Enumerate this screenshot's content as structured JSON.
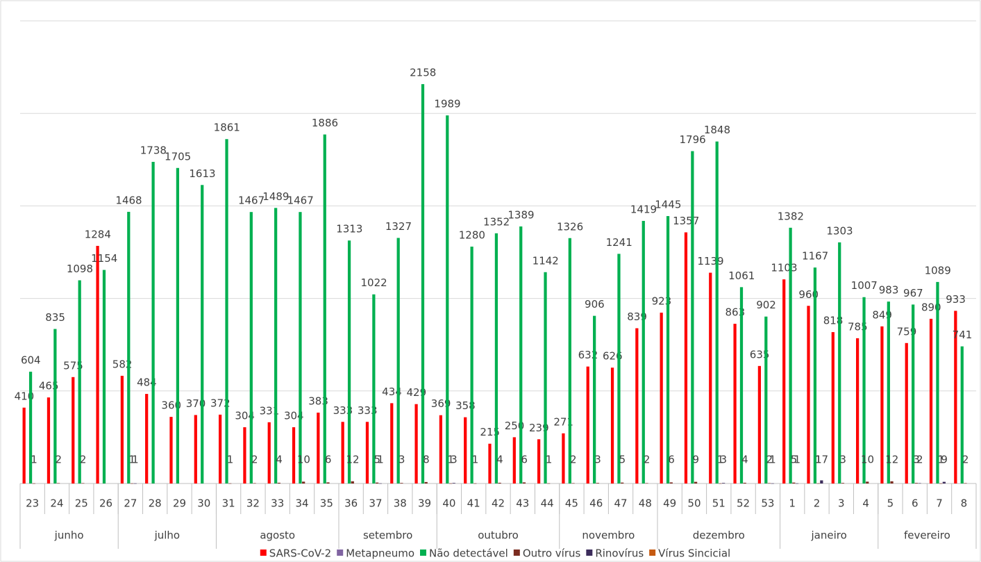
{
  "chart_data": {
    "type": "bar",
    "groups": [
      {
        "label": "junho",
        "categories": [
          "23",
          "24",
          "25",
          "26"
        ]
      },
      {
        "label": "julho",
        "categories": [
          "27",
          "28",
          "29",
          "30"
        ]
      },
      {
        "label": "agosto",
        "categories": [
          "31",
          "32",
          "33",
          "34",
          "35"
        ]
      },
      {
        "label": "setembro",
        "categories": [
          "36",
          "37",
          "38",
          "39"
        ]
      },
      {
        "label": "outubro",
        "categories": [
          "40",
          "41",
          "42",
          "43",
          "44"
        ]
      },
      {
        "label": "novembro",
        "categories": [
          "45",
          "46",
          "47",
          "48"
        ]
      },
      {
        "label": "dezembro",
        "categories": [
          "49",
          "50",
          "51",
          "52",
          "53"
        ]
      },
      {
        "label": "janeiro",
        "categories": [
          "1",
          "2",
          "3",
          "4"
        ]
      },
      {
        "label": "fevereiro",
        "categories": [
          "5",
          "6",
          "7",
          "8"
        ]
      }
    ],
    "series": [
      {
        "name": "SARS-CoV-2",
        "color": "#ff0000",
        "values": [
          410,
          465,
          575,
          1284,
          582,
          484,
          360,
          370,
          372,
          304,
          331,
          304,
          383,
          333,
          333,
          434,
          429,
          369,
          358,
          215,
          250,
          239,
          271,
          632,
          626,
          839,
          923,
          1357,
          1139,
          863,
          635,
          1103,
          960,
          818,
          785,
          849,
          759,
          890,
          933
        ]
      },
      {
        "name": "Metapneumo",
        "color": "#8064a2",
        "values": [
          null,
          null,
          null,
          null,
          null,
          null,
          null,
          null,
          null,
          null,
          null,
          null,
          null,
          null,
          null,
          null,
          null,
          null,
          null,
          null,
          null,
          null,
          null,
          null,
          null,
          null,
          null,
          null,
          null,
          null,
          null,
          null,
          null,
          null,
          null,
          null,
          null,
          null,
          null
        ]
      },
      {
        "name": "Não detectável",
        "color": "#00b050",
        "values": [
          604,
          835,
          1098,
          1154,
          1468,
          1738,
          1705,
          1613,
          1861,
          1467,
          1489,
          1467,
          1886,
          1313,
          1022,
          1327,
          2158,
          1989,
          1280,
          1352,
          1389,
          1142,
          1326,
          906,
          1241,
          1419,
          1445,
          1796,
          1848,
          1061,
          902,
          1382,
          1167,
          1303,
          1007,
          983,
          967,
          1089,
          741
        ]
      },
      {
        "name": "Outro vírus",
        "color": "#7b2c20",
        "values": [
          1,
          2,
          2,
          null,
          1,
          null,
          null,
          null,
          1,
          2,
          4,
          10,
          6,
          12,
          5,
          3,
          8,
          1,
          1,
          4,
          6,
          1,
          2,
          3,
          5,
          2,
          6,
          9,
          1,
          4,
          2,
          5,
          1,
          3,
          10,
          12,
          3,
          1,
          2
        ]
      },
      {
        "name": "Rinovírus",
        "color": "#3d2d5c",
        "values": [
          null,
          null,
          null,
          null,
          1,
          null,
          null,
          null,
          null,
          null,
          null,
          null,
          null,
          null,
          1,
          null,
          null,
          3,
          null,
          null,
          null,
          null,
          null,
          null,
          null,
          null,
          null,
          null,
          3,
          null,
          1,
          1,
          17,
          null,
          null,
          null,
          2,
          9,
          null
        ]
      },
      {
        "name": "Vírus Sincicial",
        "color": "#c55a11",
        "values": [
          null,
          null,
          null,
          null,
          null,
          null,
          null,
          null,
          null,
          null,
          null,
          null,
          null,
          null,
          null,
          null,
          null,
          null,
          null,
          null,
          null,
          null,
          null,
          null,
          null,
          null,
          null,
          null,
          null,
          null,
          null,
          null,
          null,
          null,
          null,
          null,
          null,
          null,
          null
        ]
      }
    ],
    "ylim": [
      0,
      2500
    ],
    "yticks": [
      0,
      500,
      1000,
      1500,
      2000,
      2500
    ],
    "grid": true,
    "legend": "bottom"
  }
}
